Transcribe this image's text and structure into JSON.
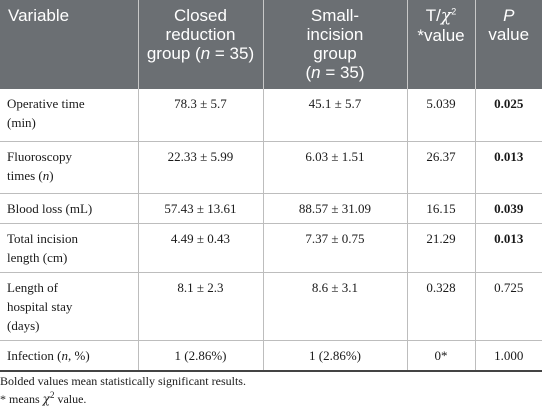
{
  "headers": {
    "variable": "Variable",
    "closed": [
      "Closed",
      "reduction",
      "group ("
    ],
    "closed_n": "n",
    "closed_tail": " = 35)",
    "small": [
      "Small-",
      "incision",
      "group"
    ],
    "small_n": "n",
    "small_tail": " = 35)",
    "small_open": "(",
    "t_prefix": "T/",
    "t_chi": "χ",
    "t_sup": "2",
    "t_line2": "*value",
    "p_italic": "P",
    "p_line2": "value"
  },
  "rows": [
    {
      "variable": [
        "Operative time",
        "(min)"
      ],
      "closed": "78.3 ± 5.7",
      "small": "45.1 ± 5.7",
      "t": "5.039",
      "p": "0.025",
      "p_bold": true
    },
    {
      "variable": [
        "Fluoroscopy",
        "times ("
      ],
      "variable_italic": "n",
      "variable_tail": ")",
      "closed": "22.33 ± 5.99",
      "small": "6.03 ± 1.51",
      "t": "26.37",
      "p": "0.013",
      "p_bold": true
    },
    {
      "variable": [
        "Blood loss (mL)"
      ],
      "closed": "57.43 ± 13.61",
      "small": "88.57 ± 31.09",
      "t": "16.15",
      "p": "0.039",
      "p_bold": true
    },
    {
      "variable": [
        "Total incision",
        "length (cm)"
      ],
      "closed": "4.49 ± 0.43",
      "small": "7.37 ± 0.75",
      "t": "21.29",
      "p": "0.013",
      "p_bold": true
    },
    {
      "variable": [
        "Length of",
        "hospital stay",
        "(days)"
      ],
      "closed": "8.1 ± 2.3",
      "small": "8.6 ± 3.1",
      "t": "0.328",
      "p": "0.725",
      "p_bold": false
    },
    {
      "variable": [
        "Infection ("
      ],
      "variable_italic": "n",
      "variable_tail": ", %)",
      "closed": "1 (2.86%)",
      "small": "1 (2.86%)",
      "t": "0*",
      "p": "1.000",
      "p_bold": false
    }
  ],
  "footnotes": {
    "bold_note": "Bolded values mean statistically significant results.",
    "chi_note_prefix": "* means ",
    "chi_symbol": "χ",
    "chi_sup": "2",
    "chi_note_suffix": " value."
  }
}
